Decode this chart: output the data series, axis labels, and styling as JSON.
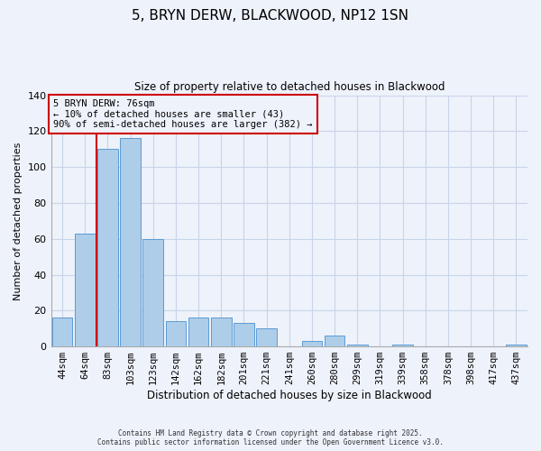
{
  "title": "5, BRYN DERW, BLACKWOOD, NP12 1SN",
  "subtitle": "Size of property relative to detached houses in Blackwood",
  "xlabel": "Distribution of detached houses by size in Blackwood",
  "ylabel": "Number of detached properties",
  "bar_labels": [
    "44sqm",
    "64sqm",
    "83sqm",
    "103sqm",
    "123sqm",
    "142sqm",
    "162sqm",
    "182sqm",
    "201sqm",
    "221sqm",
    "241sqm",
    "260sqm",
    "280sqm",
    "299sqm",
    "319sqm",
    "339sqm",
    "358sqm",
    "378sqm",
    "398sqm",
    "417sqm",
    "437sqm"
  ],
  "bar_values": [
    16,
    63,
    110,
    116,
    60,
    14,
    16,
    16,
    13,
    10,
    0,
    3,
    6,
    1,
    0,
    1,
    0,
    0,
    0,
    0,
    1
  ],
  "bar_color": "#aecde8",
  "bar_edge_color": "#5b9bd5",
  "ylim": [
    0,
    140
  ],
  "yticks": [
    0,
    20,
    40,
    60,
    80,
    100,
    120,
    140
  ],
  "vline_color": "#cc0000",
  "annotation_title": "5 BRYN DERW: 76sqm",
  "annotation_line1": "← 10% of detached houses are smaller (43)",
  "annotation_line2": "90% of semi-detached houses are larger (382) →",
  "annotation_box_color": "#cc0000",
  "footer1": "Contains HM Land Registry data © Crown copyright and database right 2025.",
  "footer2": "Contains public sector information licensed under the Open Government Licence v3.0.",
  "background_color": "#eef2fb",
  "grid_color": "#c8d4e8"
}
